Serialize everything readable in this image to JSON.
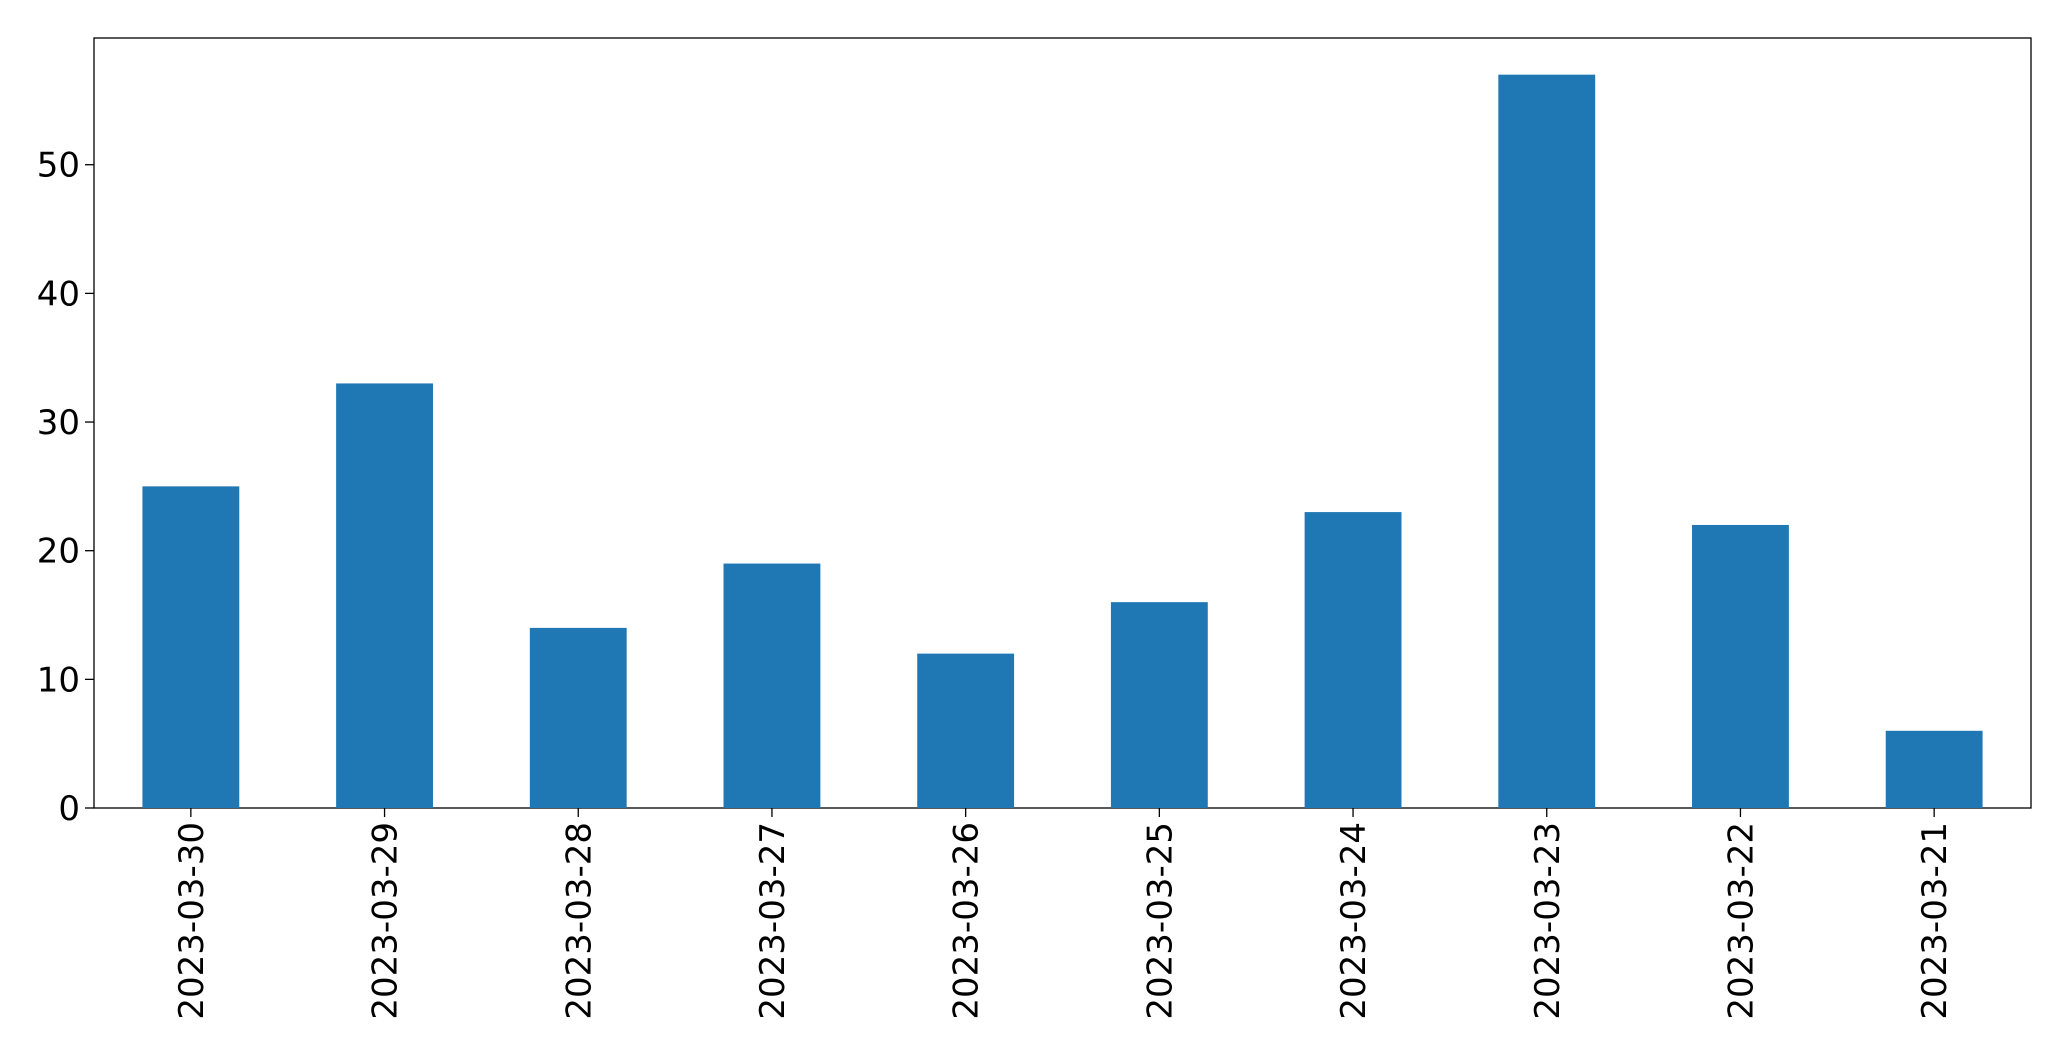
{
  "chart_data": {
    "type": "bar",
    "categories": [
      "2023-03-30",
      "2023-03-29",
      "2023-03-28",
      "2023-03-27",
      "2023-03-26",
      "2023-03-25",
      "2023-03-24",
      "2023-03-23",
      "2023-03-22",
      "2023-03-21"
    ],
    "values": [
      25,
      33,
      14,
      19,
      12,
      16,
      23,
      57,
      22,
      6
    ],
    "color": "#1f77b4",
    "ylim": [
      0,
      59.85
    ],
    "yticks": [
      0,
      10,
      20,
      30,
      40,
      50
    ],
    "grid": false
  }
}
